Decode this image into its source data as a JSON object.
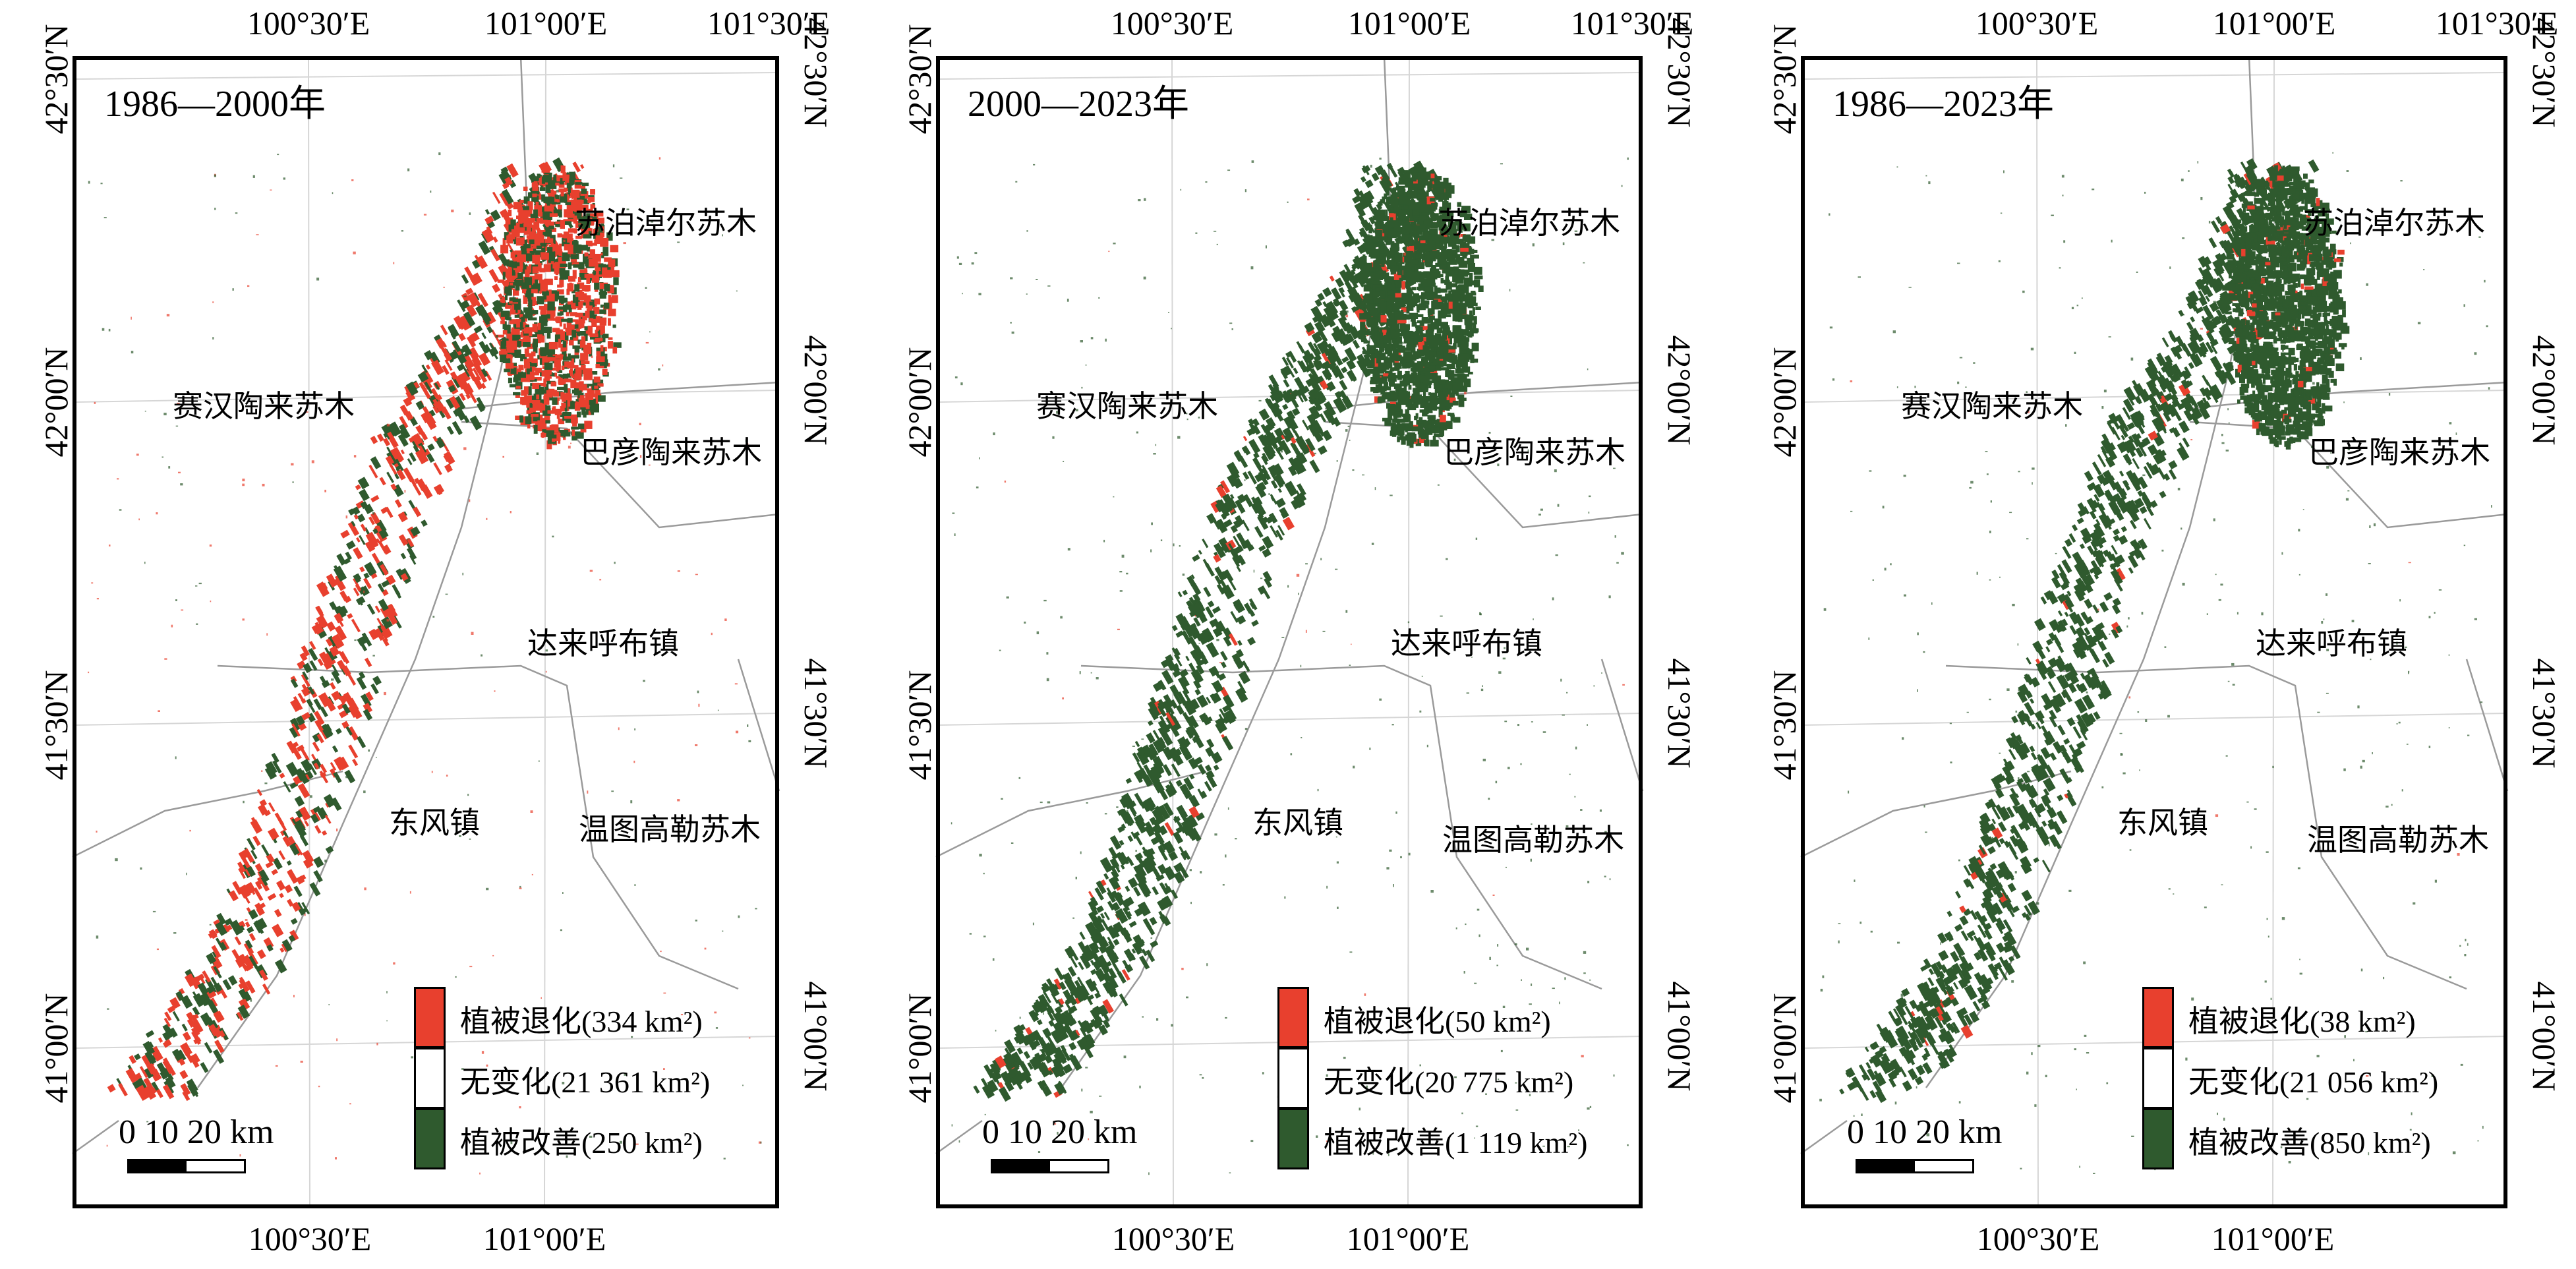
{
  "axis_labels": {
    "lon_top": [
      "100°30′E",
      "101°00′E",
      "101°30′E"
    ],
    "lon_bottom": [
      "100°30′E",
      "101°00′E"
    ],
    "lat_left": [
      "42°30′N",
      "42°00′N",
      "41°30′N",
      "41°00′N"
    ],
    "lat_right": [
      "42°30′N",
      "42°00′N",
      "41°30′N",
      "41°00′N"
    ]
  },
  "places": {
    "supo": "苏泊淖尔苏木",
    "saihan": "赛汉陶来苏木",
    "bayan": "巴彦陶来苏木",
    "dalai": "达来呼布镇",
    "dongfeng": "东风镇",
    "wentu": "温图高勒苏木"
  },
  "scale": {
    "label": "0  10  20 km"
  },
  "colors": {
    "degradation": "#e8402e",
    "unchanged": "#ffffff",
    "improvement": "#2f5a2e",
    "boundary": "#9a9a9a",
    "grid": "#d6d6d6"
  },
  "panels": [
    {
      "title": "1986—2000年",
      "legend": {
        "degradation": "植被退化(334 km²)",
        "unchanged": "无变化(21 361 km²)",
        "improvement": "植被改善(250  km²)"
      },
      "area_km2": {
        "degradation": 334,
        "unchanged": 21361,
        "improvement": 250
      }
    },
    {
      "title": "2000—2023年",
      "legend": {
        "degradation": "植被退化(50 km²)",
        "unchanged": "无变化(20 775 km²)",
        "improvement": "植被改善(1 119  km²)"
      },
      "area_km2": {
        "degradation": 50,
        "unchanged": 20775,
        "improvement": 1119
      }
    },
    {
      "title": "1986—2023年",
      "legend": {
        "degradation": "植被退化(38 km²)",
        "unchanged": "无变化(21 056 km²)",
        "improvement": "植被改善(850  km²)"
      },
      "area_km2": {
        "degradation": 38,
        "unchanged": 21056,
        "improvement": 850
      }
    }
  ]
}
